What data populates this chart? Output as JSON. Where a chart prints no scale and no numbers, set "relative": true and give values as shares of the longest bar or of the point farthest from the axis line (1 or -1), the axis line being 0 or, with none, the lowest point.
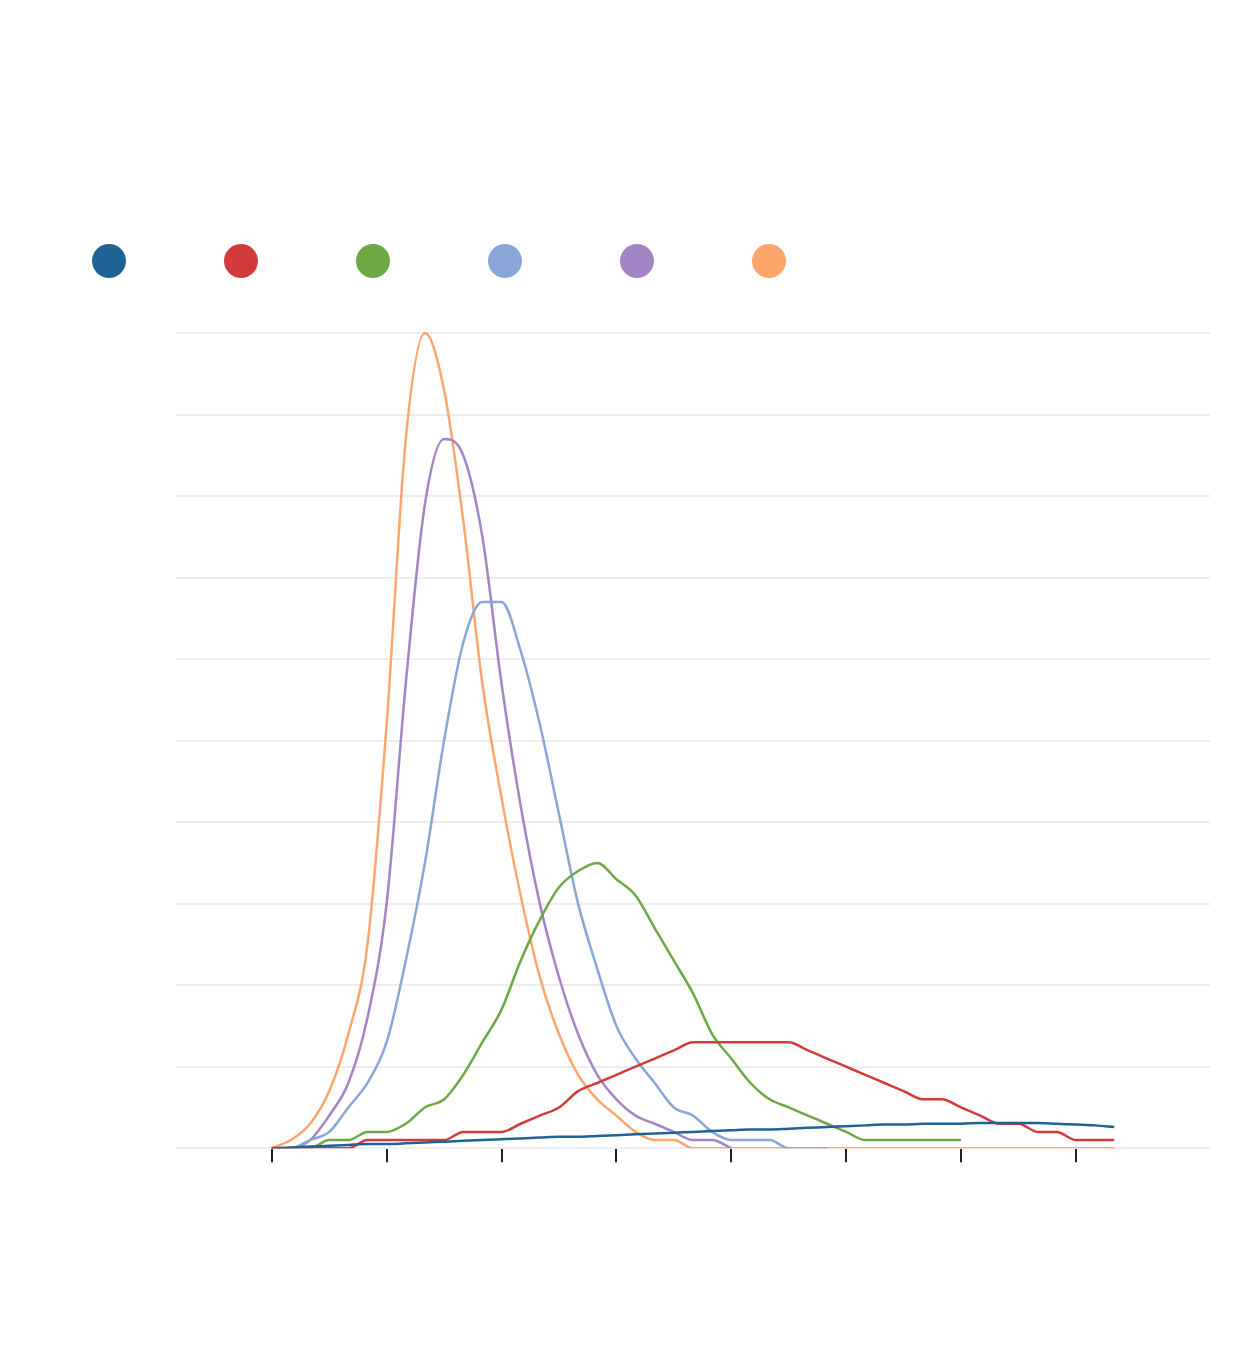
{
  "chart_data": {
    "type": "line",
    "relative": true,
    "grid": "y",
    "marker": "none",
    "categories": [
      null,
      null,
      null,
      null,
      null,
      null,
      null,
      null,
      null,
      null,
      null,
      null,
      null,
      null,
      null,
      null,
      null,
      null,
      null,
      null,
      null,
      null,
      null,
      null,
      null,
      null,
      null,
      null,
      null,
      null,
      null,
      null,
      null,
      null,
      null,
      null,
      null,
      null,
      null,
      null,
      null,
      null,
      null,
      null,
      null,
      null,
      null,
      null,
      null,
      null,
      null,
      null,
      null,
      null,
      null
    ],
    "series": [
      {
        "color": "#1f6396",
        "values": [
          null,
          null,
          null,
          null,
          null,
          0,
          0.001,
          0.002,
          0.003,
          0.004,
          0.005,
          0.005,
          0.006,
          0.007,
          0.008,
          0.009,
          0.01,
          0.011,
          0.012,
          0.013,
          0.014,
          0.014,
          0.015,
          0.016,
          0.017,
          0.018,
          0.019,
          0.02,
          0.021,
          0.022,
          0.023,
          0.023,
          0.024,
          0.025,
          0.026,
          0.027,
          0.028,
          0.029,
          0.029,
          0.03,
          0.03,
          0.03,
          0.031,
          0.031,
          0.031,
          0.031,
          0.03,
          0.029,
          0.028,
          0.026,
          null,
          null,
          null,
          null,
          null
        ]
      },
      {
        "color": "#d13b3b",
        "values": [
          null,
          null,
          null,
          null,
          null,
          0,
          0,
          0,
          0,
          0,
          0.01,
          0.01,
          0.01,
          0.01,
          0.01,
          0.02,
          0.02,
          0.02,
          0.03,
          0.04,
          0.05,
          0.07,
          0.08,
          0.09,
          0.1,
          0.11,
          0.12,
          0.13,
          0.13,
          0.13,
          0.13,
          0.13,
          0.13,
          0.12,
          0.11,
          0.1,
          0.09,
          0.08,
          0.07,
          0.06,
          0.06,
          0.05,
          0.04,
          0.03,
          0.03,
          0.02,
          0.02,
          0.01,
          0.01,
          0.01,
          null,
          null,
          null,
          null,
          null
        ]
      },
      {
        "color": "#6ca843",
        "values": [
          null,
          null,
          null,
          null,
          null,
          0,
          0,
          0,
          0.01,
          0.01,
          0.02,
          0.02,
          0.03,
          0.05,
          0.06,
          0.09,
          0.13,
          0.17,
          0.23,
          0.28,
          0.32,
          0.34,
          0.35,
          0.33,
          0.31,
          0.27,
          0.23,
          0.19,
          0.14,
          0.11,
          0.08,
          0.06,
          0.05,
          0.04,
          0.03,
          0.02,
          0.01,
          0.01,
          0.01,
          0.01,
          0.01,
          0.01,
          null,
          null,
          null,
          null,
          null,
          null,
          null,
          null,
          null,
          null,
          null,
          null,
          null
        ]
      },
      {
        "color": "#8aa5d8",
        "values": [
          null,
          null,
          null,
          null,
          null,
          0,
          0,
          0.01,
          0.02,
          0.05,
          0.08,
          0.13,
          0.23,
          0.35,
          0.5,
          0.62,
          0.67,
          0.67,
          0.61,
          0.52,
          0.41,
          0.3,
          0.22,
          0.15,
          0.11,
          0.08,
          0.05,
          0.04,
          0.02,
          0.01,
          0.01,
          0.01,
          0,
          0,
          0,
          null,
          null,
          null,
          null,
          null,
          null,
          null,
          null,
          null,
          null,
          null,
          null,
          null,
          null,
          null,
          null,
          null,
          null,
          null,
          null
        ]
      },
      {
        "color": "#a385c6",
        "values": [
          null,
          null,
          null,
          null,
          null,
          0,
          0,
          0.01,
          0.04,
          0.08,
          0.16,
          0.3,
          0.57,
          0.79,
          0.87,
          0.85,
          0.75,
          0.57,
          0.42,
          0.3,
          0.21,
          0.14,
          0.09,
          0.06,
          0.04,
          0.03,
          0.02,
          0.01,
          0.01,
          0,
          null,
          null,
          null,
          null,
          null,
          null,
          null,
          null,
          null,
          null,
          null,
          null,
          null,
          null,
          null,
          null,
          null,
          null,
          null,
          null,
          null,
          null,
          null,
          null,
          null
        ]
      },
      {
        "color": "#ffa66d",
        "values": [
          null,
          null,
          null,
          null,
          null,
          0,
          0.01,
          0.03,
          0.07,
          0.14,
          0.25,
          0.52,
          0.87,
          1,
          0.93,
          0.77,
          0.57,
          0.43,
          0.31,
          0.21,
          0.14,
          0.09,
          0.06,
          0.04,
          0.02,
          0.01,
          0.01,
          0,
          0,
          0,
          0,
          0,
          0,
          0,
          0,
          0,
          0,
          0,
          0,
          0,
          0,
          0,
          0,
          0,
          0,
          0,
          0,
          0,
          0,
          0,
          null,
          null,
          null,
          null,
          null
        ]
      }
    ]
  }
}
